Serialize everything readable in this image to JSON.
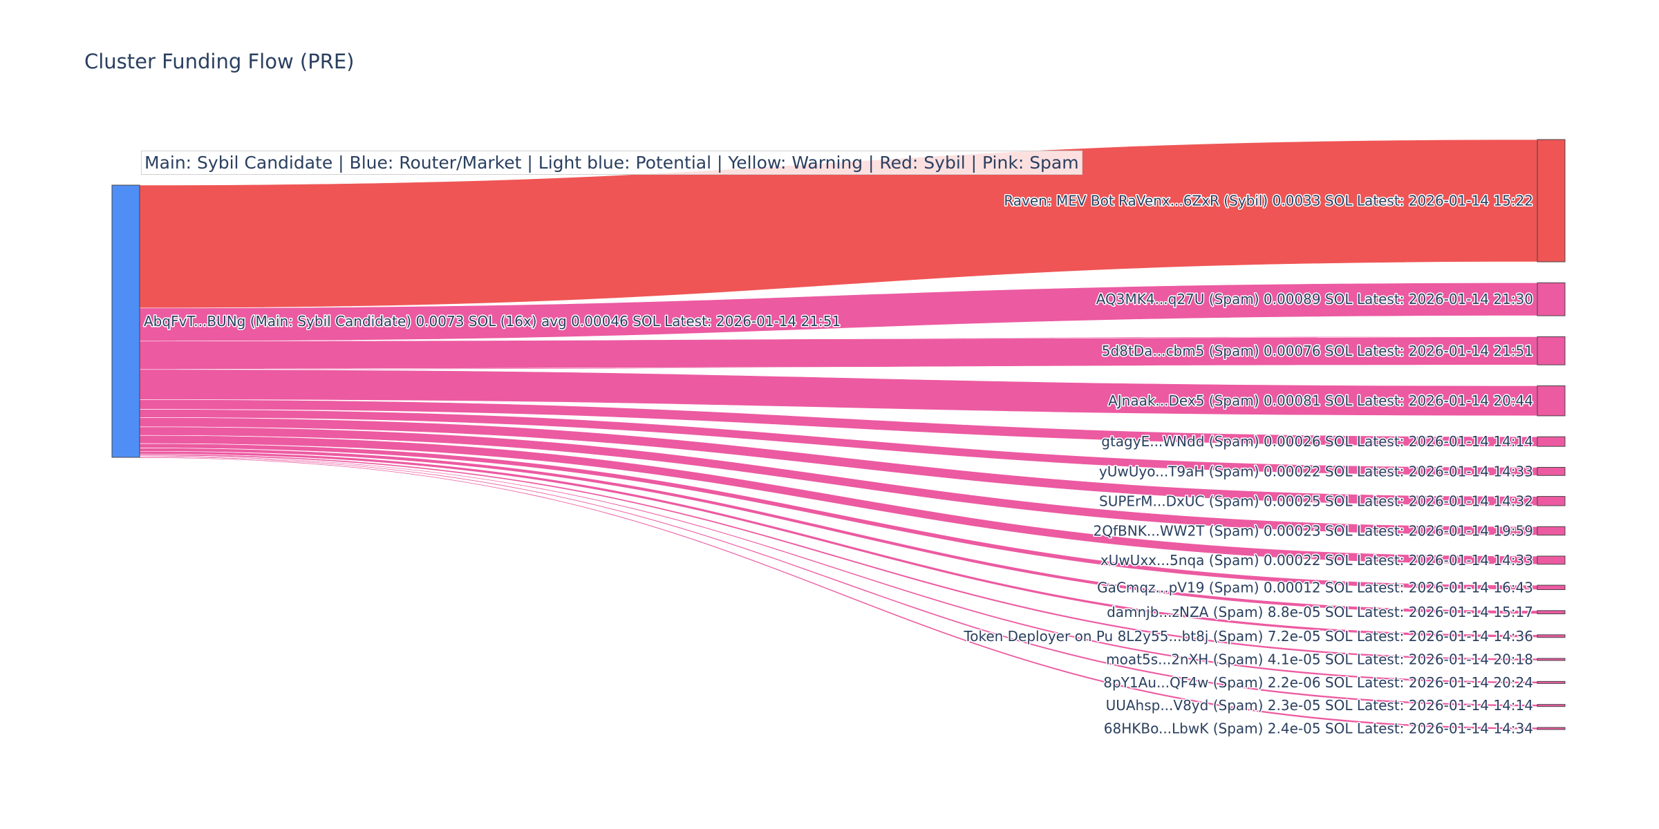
{
  "title": "Cluster Funding Flow (PRE)",
  "legend_note": "Main: Sybil Candidate  |  Blue: Router/Market | Light blue: Potential | Yellow: Warning | Red: Sybil | Pink: Spam",
  "colors": {
    "main": "#4f8ef5",
    "sybil": "#ef5555",
    "spam": "#ec5aa1",
    "text": "#2a3f5f"
  },
  "chart_data": {
    "type": "sankey",
    "title": "Cluster Funding Flow (PRE)",
    "source": {
      "id": "AbqFvT...BUNg",
      "category": "main",
      "label": "AbqFvT...BUNg (Main: Sybil Candidate) 0.0073 SOL (16x) avg 0.00046 SOL Latest: 2026-01-14 21:51"
    },
    "targets": [
      {
        "id": "RaVenx...6ZxR",
        "category": "sybil",
        "value": 0.0033,
        "label": "Raven: MEV Bot RaVenx...6ZxR (Sybil) 0.0033 SOL Latest: 2026-01-14 15:22"
      },
      {
        "id": "AQ3MK4...q27U",
        "category": "spam",
        "value": 0.00089,
        "label": "AQ3MK4...q27U (Spam) 0.00089 SOL Latest: 2026-01-14 21:30"
      },
      {
        "id": "5d8tDa...cbm5",
        "category": "spam",
        "value": 0.00076,
        "label": "5d8tDa...cbm5 (Spam) 0.00076 SOL Latest: 2026-01-14 21:51"
      },
      {
        "id": "AJnaak...Dex5",
        "category": "spam",
        "value": 0.00081,
        "label": "AJnaak...Dex5 (Spam) 0.00081 SOL Latest: 2026-01-14 20:44"
      },
      {
        "id": "gtagyE...WNdd",
        "category": "spam",
        "value": 0.00026,
        "label": "gtagyE...WNdd (Spam) 0.00026 SOL Latest: 2026-01-14 14:14"
      },
      {
        "id": "yUwUyo...T9aH",
        "category": "spam",
        "value": 0.00022,
        "label": "yUwUyo...T9aH (Spam) 0.00022 SOL Latest: 2026-01-14 14:33"
      },
      {
        "id": "SUPErM...DxUC",
        "category": "spam",
        "value": 0.00025,
        "label": "SUPErM...DxUC (Spam) 0.00025 SOL Latest: 2026-01-14 14:32"
      },
      {
        "id": "2QfBNK...WW2T",
        "category": "spam",
        "value": 0.00023,
        "label": "2QfBNK...WW2T (Spam) 0.00023 SOL Latest: 2026-01-14 19:59"
      },
      {
        "id": "xUwUxx...5nqa",
        "category": "spam",
        "value": 0.00022,
        "label": "xUwUxx...5nqa (Spam) 0.00022 SOL Latest: 2026-01-14 14:33"
      },
      {
        "id": "GaCmqz...pV19",
        "category": "spam",
        "value": 0.00012,
        "label": "GaCmqz...pV19 (Spam) 0.00012 SOL Latest: 2026-01-14 16:43"
      },
      {
        "id": "damnjb...zNZA",
        "category": "spam",
        "value": 8.8e-05,
        "label": "damnjb...zNZA (Spam) 8.8e-05 SOL Latest: 2026-01-14 15:17"
      },
      {
        "id": "8L2y55...bt8j",
        "category": "spam",
        "value": 7.2e-05,
        "label": "Token Deployer on Pu 8L2y55...bt8j (Spam) 7.2e-05 SOL Latest: 2026-01-14 14:36"
      },
      {
        "id": "moat5s...2nXH",
        "category": "spam",
        "value": 4.1e-05,
        "label": "moat5s...2nXH (Spam) 4.1e-05 SOL Latest: 2026-01-14 20:18"
      },
      {
        "id": "8pY1Au...QF4w",
        "category": "spam",
        "value": 2.2e-06,
        "label": "8pY1Au...QF4w (Spam) 2.2e-06 SOL Latest: 2026-01-14 20:24"
      },
      {
        "id": "UUAhsp...V8yd",
        "category": "spam",
        "value": 2.3e-05,
        "label": "UUAhsp...V8yd (Spam) 2.3e-05 SOL Latest: 2026-01-14 14:14"
      },
      {
        "id": "68HKBo...LbwK",
        "category": "spam",
        "value": 2.4e-05,
        "label": "68HKBo...LbwK (Spam) 2.4e-05 SOL Latest: 2026-01-14 14:34"
      }
    ]
  }
}
